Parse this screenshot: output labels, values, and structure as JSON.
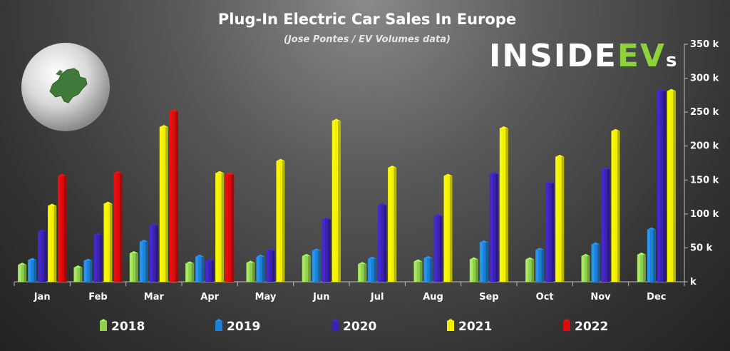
{
  "chart_data": {
    "type": "bar",
    "title": "Plug-In Electric Car Sales In Europe",
    "subtitle": "(Jose Pontes / EV Volumes data)",
    "logo": "INSIDEEVs",
    "categories": [
      "Jan",
      "Feb",
      "Mar",
      "Apr",
      "May",
      "Jun",
      "Jul",
      "Aug",
      "Sep",
      "Oct",
      "Nov",
      "Dec"
    ],
    "series": [
      {
        "name": "2018",
        "color": "#8fd14f",
        "values": [
          25,
          21,
          42,
          27,
          28,
          38,
          26,
          30,
          33,
          33,
          38,
          40
        ]
      },
      {
        "name": "2019",
        "color": "#1e7fd6",
        "values": [
          32,
          31,
          59,
          37,
          37,
          46,
          34,
          35,
          58,
          47,
          55,
          77
        ]
      },
      {
        "name": "2020",
        "color": "#3b22b0",
        "values": [
          74,
          69,
          83,
          31,
          46,
          92,
          113,
          97,
          159,
          145,
          166,
          281
        ]
      },
      {
        "name": "2021",
        "color": "#f2f000",
        "values": [
          112,
          115,
          228,
          160,
          178,
          237,
          168,
          156,
          226,
          184,
          222,
          281
        ]
      },
      {
        "name": "2022",
        "color": "#d80c0c",
        "values": [
          156,
          160,
          251,
          158,
          null,
          null,
          null,
          null,
          null,
          null,
          null,
          null
        ]
      }
    ],
    "ylim": [
      0,
      350
    ],
    "yticks": [
      0,
      50,
      100,
      150,
      200,
      250,
      300,
      350
    ],
    "ytick_labels": [
      "k",
      "50 k",
      "100 k",
      "150 k",
      "200 k",
      "250 k",
      "300 k",
      "350 k"
    ],
    "grid": false,
    "legend": "bottom"
  }
}
